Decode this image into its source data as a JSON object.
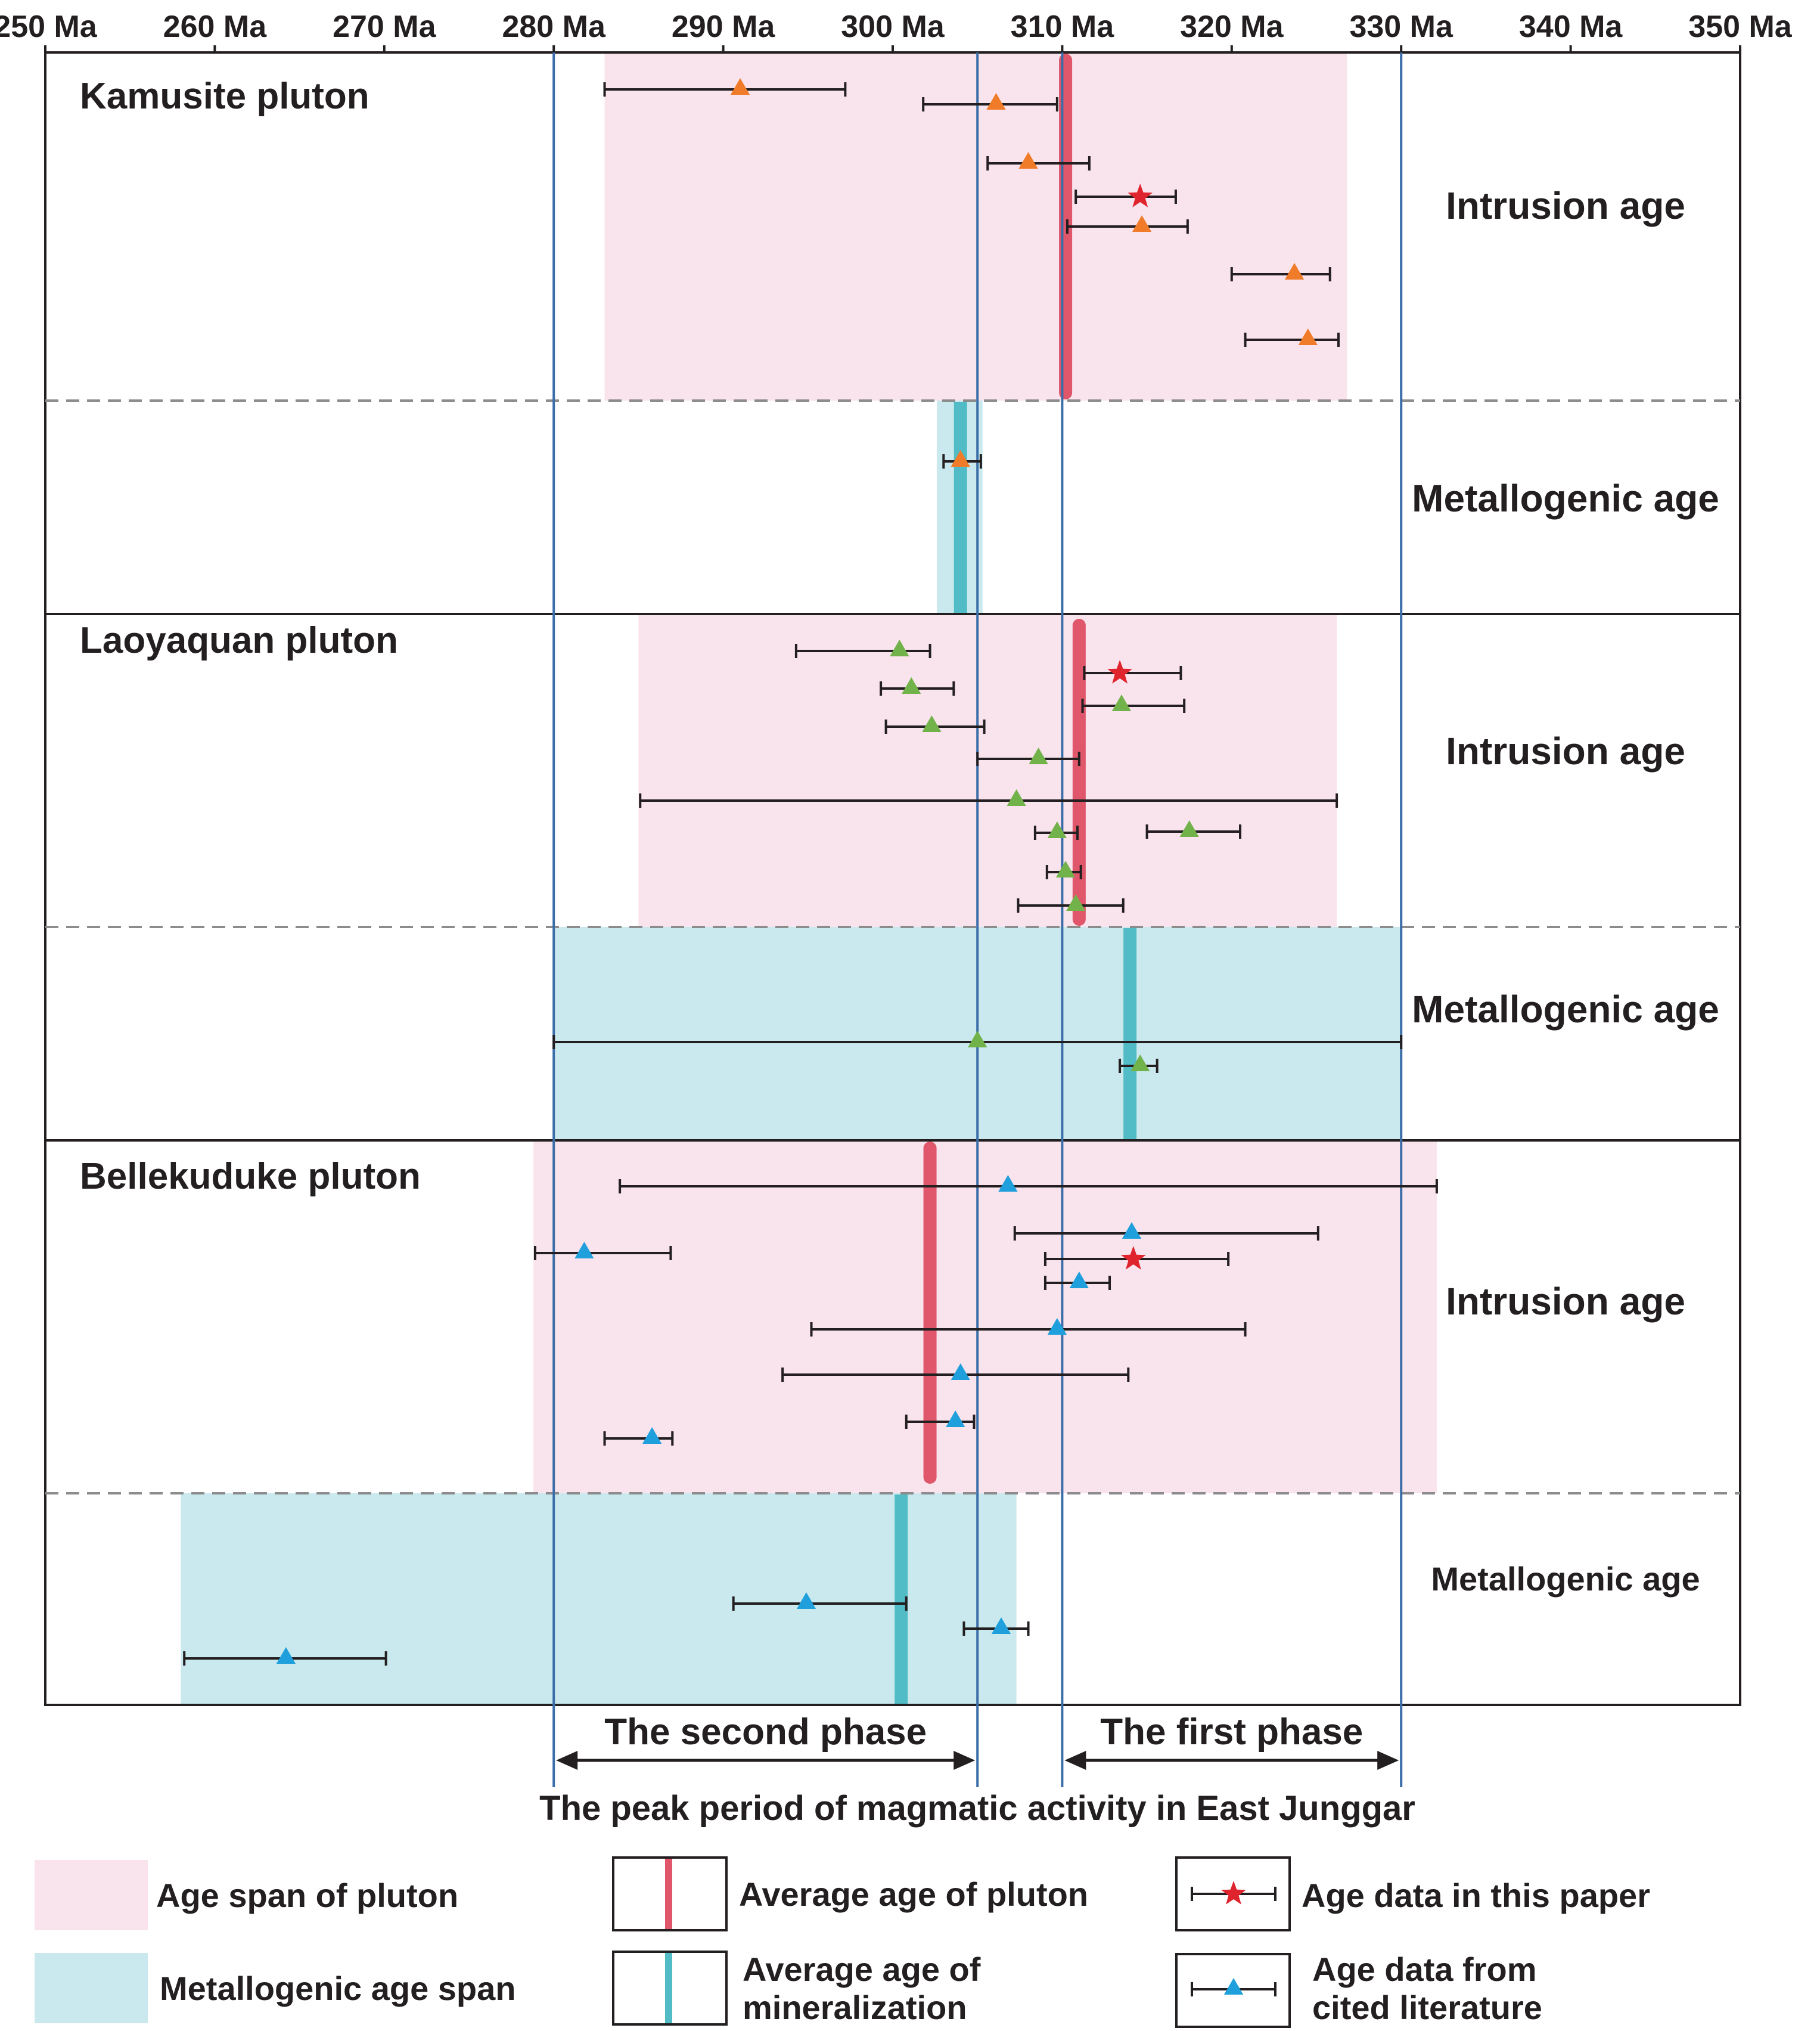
{
  "chart_data": {
    "type": "range-timeline",
    "title": "",
    "xlabel": "The peak period of magmatic activity in East Junggar",
    "ylabel": "",
    "x_unit": "Ma",
    "xlim": [
      250,
      350
    ],
    "x_ticks": [
      250,
      260,
      270,
      280,
      290,
      300,
      310,
      320,
      330,
      340,
      350
    ],
    "x_tick_labels": [
      "250 Ma",
      "260 Ma",
      "270 Ma",
      "280 Ma",
      "290 Ma",
      "300 Ma",
      "310 Ma",
      "320 Ma",
      "330 Ma",
      "340 Ma",
      "350 Ma"
    ],
    "colors": {
      "pluton_span": "#f9e3ec",
      "metallogenic_span": "#c9e9ee",
      "pluton_average": "#e0566a",
      "mineralization_average": "#52bcc6",
      "kamusite_marker": "#f07c2a",
      "laoyaquan_marker": "#72b24a",
      "bellekuduke_marker": "#1fa0dc",
      "this_paper_marker": "#e0242e",
      "phase_line": "#3b6ea8",
      "errorbar": "#231f20"
    },
    "plutons": [
      {
        "name": "Kamusite pluton",
        "marker_key": "kamusite_marker",
        "intrusion": {
          "label": "Intrusion age",
          "span": [
            283,
            326.8
          ],
          "average": 310.2,
          "points": [
            {
              "age": 291,
              "low": 283,
              "high": 297.2,
              "source": "literature"
            },
            {
              "age": 306.1,
              "low": 301.8,
              "high": 309.7,
              "source": "literature"
            },
            {
              "age": 308,
              "low": 305.6,
              "high": 311.6,
              "source": "literature"
            },
            {
              "age": 314.6,
              "low": 310.8,
              "high": 316.7,
              "source": "this paper"
            },
            {
              "age": 314.7,
              "low": 310.3,
              "high": 317.4,
              "source": "literature"
            },
            {
              "age": 323.7,
              "low": 320,
              "high": 325.8,
              "source": "literature"
            },
            {
              "age": 324.5,
              "low": 320.8,
              "high": 326.3,
              "source": "literature"
            }
          ]
        },
        "metallogenic": {
          "label": "Metallogenic age",
          "span": [
            302.6,
            305.3
          ],
          "average": 304,
          "points": [
            {
              "age": 304,
              "low": 303,
              "high": 305.2,
              "source": "literature"
            }
          ]
        }
      },
      {
        "name": "Laoyaquan pluton",
        "marker_key": "laoyaquan_marker",
        "intrusion": {
          "label": "Intrusion age",
          "span": [
            285,
            326.2
          ],
          "average": 311,
          "points": [
            {
              "age": 300.4,
              "low": 294.3,
              "high": 302.2,
              "source": "literature"
            },
            {
              "age": 313.4,
              "low": 311.3,
              "high": 317.0,
              "source": "this paper"
            },
            {
              "age": 313.5,
              "low": 311.2,
              "high": 317.2,
              "source": "literature"
            },
            {
              "age": 301.1,
              "low": 299.3,
              "high": 303.6,
              "source": "literature"
            },
            {
              "age": 302.3,
              "low": 299.6,
              "high": 305.4,
              "source": "literature"
            },
            {
              "age": 308.6,
              "low": 305.0,
              "high": 311.0,
              "source": "literature"
            },
            {
              "age": 307.3,
              "low": 285.1,
              "high": 326.2,
              "source": "literature"
            },
            {
              "age": 317.5,
              "low": 315.0,
              "high": 320.5,
              "source": "literature"
            },
            {
              "age": 309.7,
              "low": 308.4,
              "high": 310.9,
              "source": "literature"
            },
            {
              "age": 310.2,
              "low": 309.1,
              "high": 311.1,
              "source": "literature"
            },
            {
              "age": 310.8,
              "low": 307.4,
              "high": 313.6,
              "source": "literature"
            }
          ]
        },
        "metallogenic": {
          "label": "Metallogenic age",
          "span": [
            280,
            330
          ],
          "average": 314,
          "points": [
            {
              "age": 305,
              "low": 280,
              "high": 330,
              "source": "literature"
            },
            {
              "age": 314.6,
              "low": 313.4,
              "high": 315.6,
              "source": "literature"
            }
          ]
        }
      },
      {
        "name": "Bellekuduke pluton",
        "marker_key": "bellekuduke_marker",
        "intrusion": {
          "label": "Intrusion age",
          "span": [
            278.8,
            332.1
          ],
          "average": 302.2,
          "points": [
            {
              "age": 306.8,
              "low": 283.9,
              "high": 332.1,
              "source": "literature"
            },
            {
              "age": 314.1,
              "low": 307.2,
              "high": 325.1,
              "source": "literature"
            },
            {
              "age": 281.8,
              "low": 278.9,
              "high": 286.9,
              "source": "literature"
            },
            {
              "age": 314.2,
              "low": 309.0,
              "high": 319.8,
              "source": "this paper"
            },
            {
              "age": 311.0,
              "low": 309.0,
              "high": 312.8,
              "source": "literature"
            },
            {
              "age": 309.7,
              "low": 295.2,
              "high": 320.8,
              "source": "literature"
            },
            {
              "age": 304.0,
              "low": 293.5,
              "high": 313.9,
              "source": "literature"
            },
            {
              "age": 303.7,
              "low": 300.8,
              "high": 304.8,
              "source": "literature"
            },
            {
              "age": 285.8,
              "low": 283.0,
              "high": 287.0,
              "source": "literature"
            }
          ]
        },
        "metallogenic": {
          "label": "Metallogenic age",
          "span": [
            258,
            307.3
          ],
          "average": 300.5,
          "points": [
            {
              "age": 294.9,
              "low": 290.6,
              "high": 300.8,
              "source": "literature"
            },
            {
              "age": 306.4,
              "low": 304.2,
              "high": 308.0,
              "source": "literature"
            },
            {
              "age": 264.2,
              "low": 258.2,
              "high": 270.1,
              "source": "literature"
            }
          ]
        }
      }
    ],
    "phase_lines": [
      280,
      305,
      310,
      330
    ],
    "phases": [
      {
        "label": "The second phase",
        "range": [
          280,
          305
        ]
      },
      {
        "label": "The first phase",
        "range": [
          310,
          330
        ]
      }
    ],
    "legend": [
      {
        "key": "span",
        "label": "Age span of pluton"
      },
      {
        "key": "mspan",
        "label": "Metallogenic age span"
      },
      {
        "key": "avg",
        "label": "Average age of pluton"
      },
      {
        "key": "mavg",
        "label": "Average age of mineralization",
        "lines": [
          "Average age of",
          "mineralization"
        ]
      },
      {
        "key": "star",
        "label": "Age data in this paper"
      },
      {
        "key": "tri",
        "label": "Age data from cited literature",
        "lines": [
          "Age data from",
          "cited literature"
        ]
      }
    ]
  }
}
